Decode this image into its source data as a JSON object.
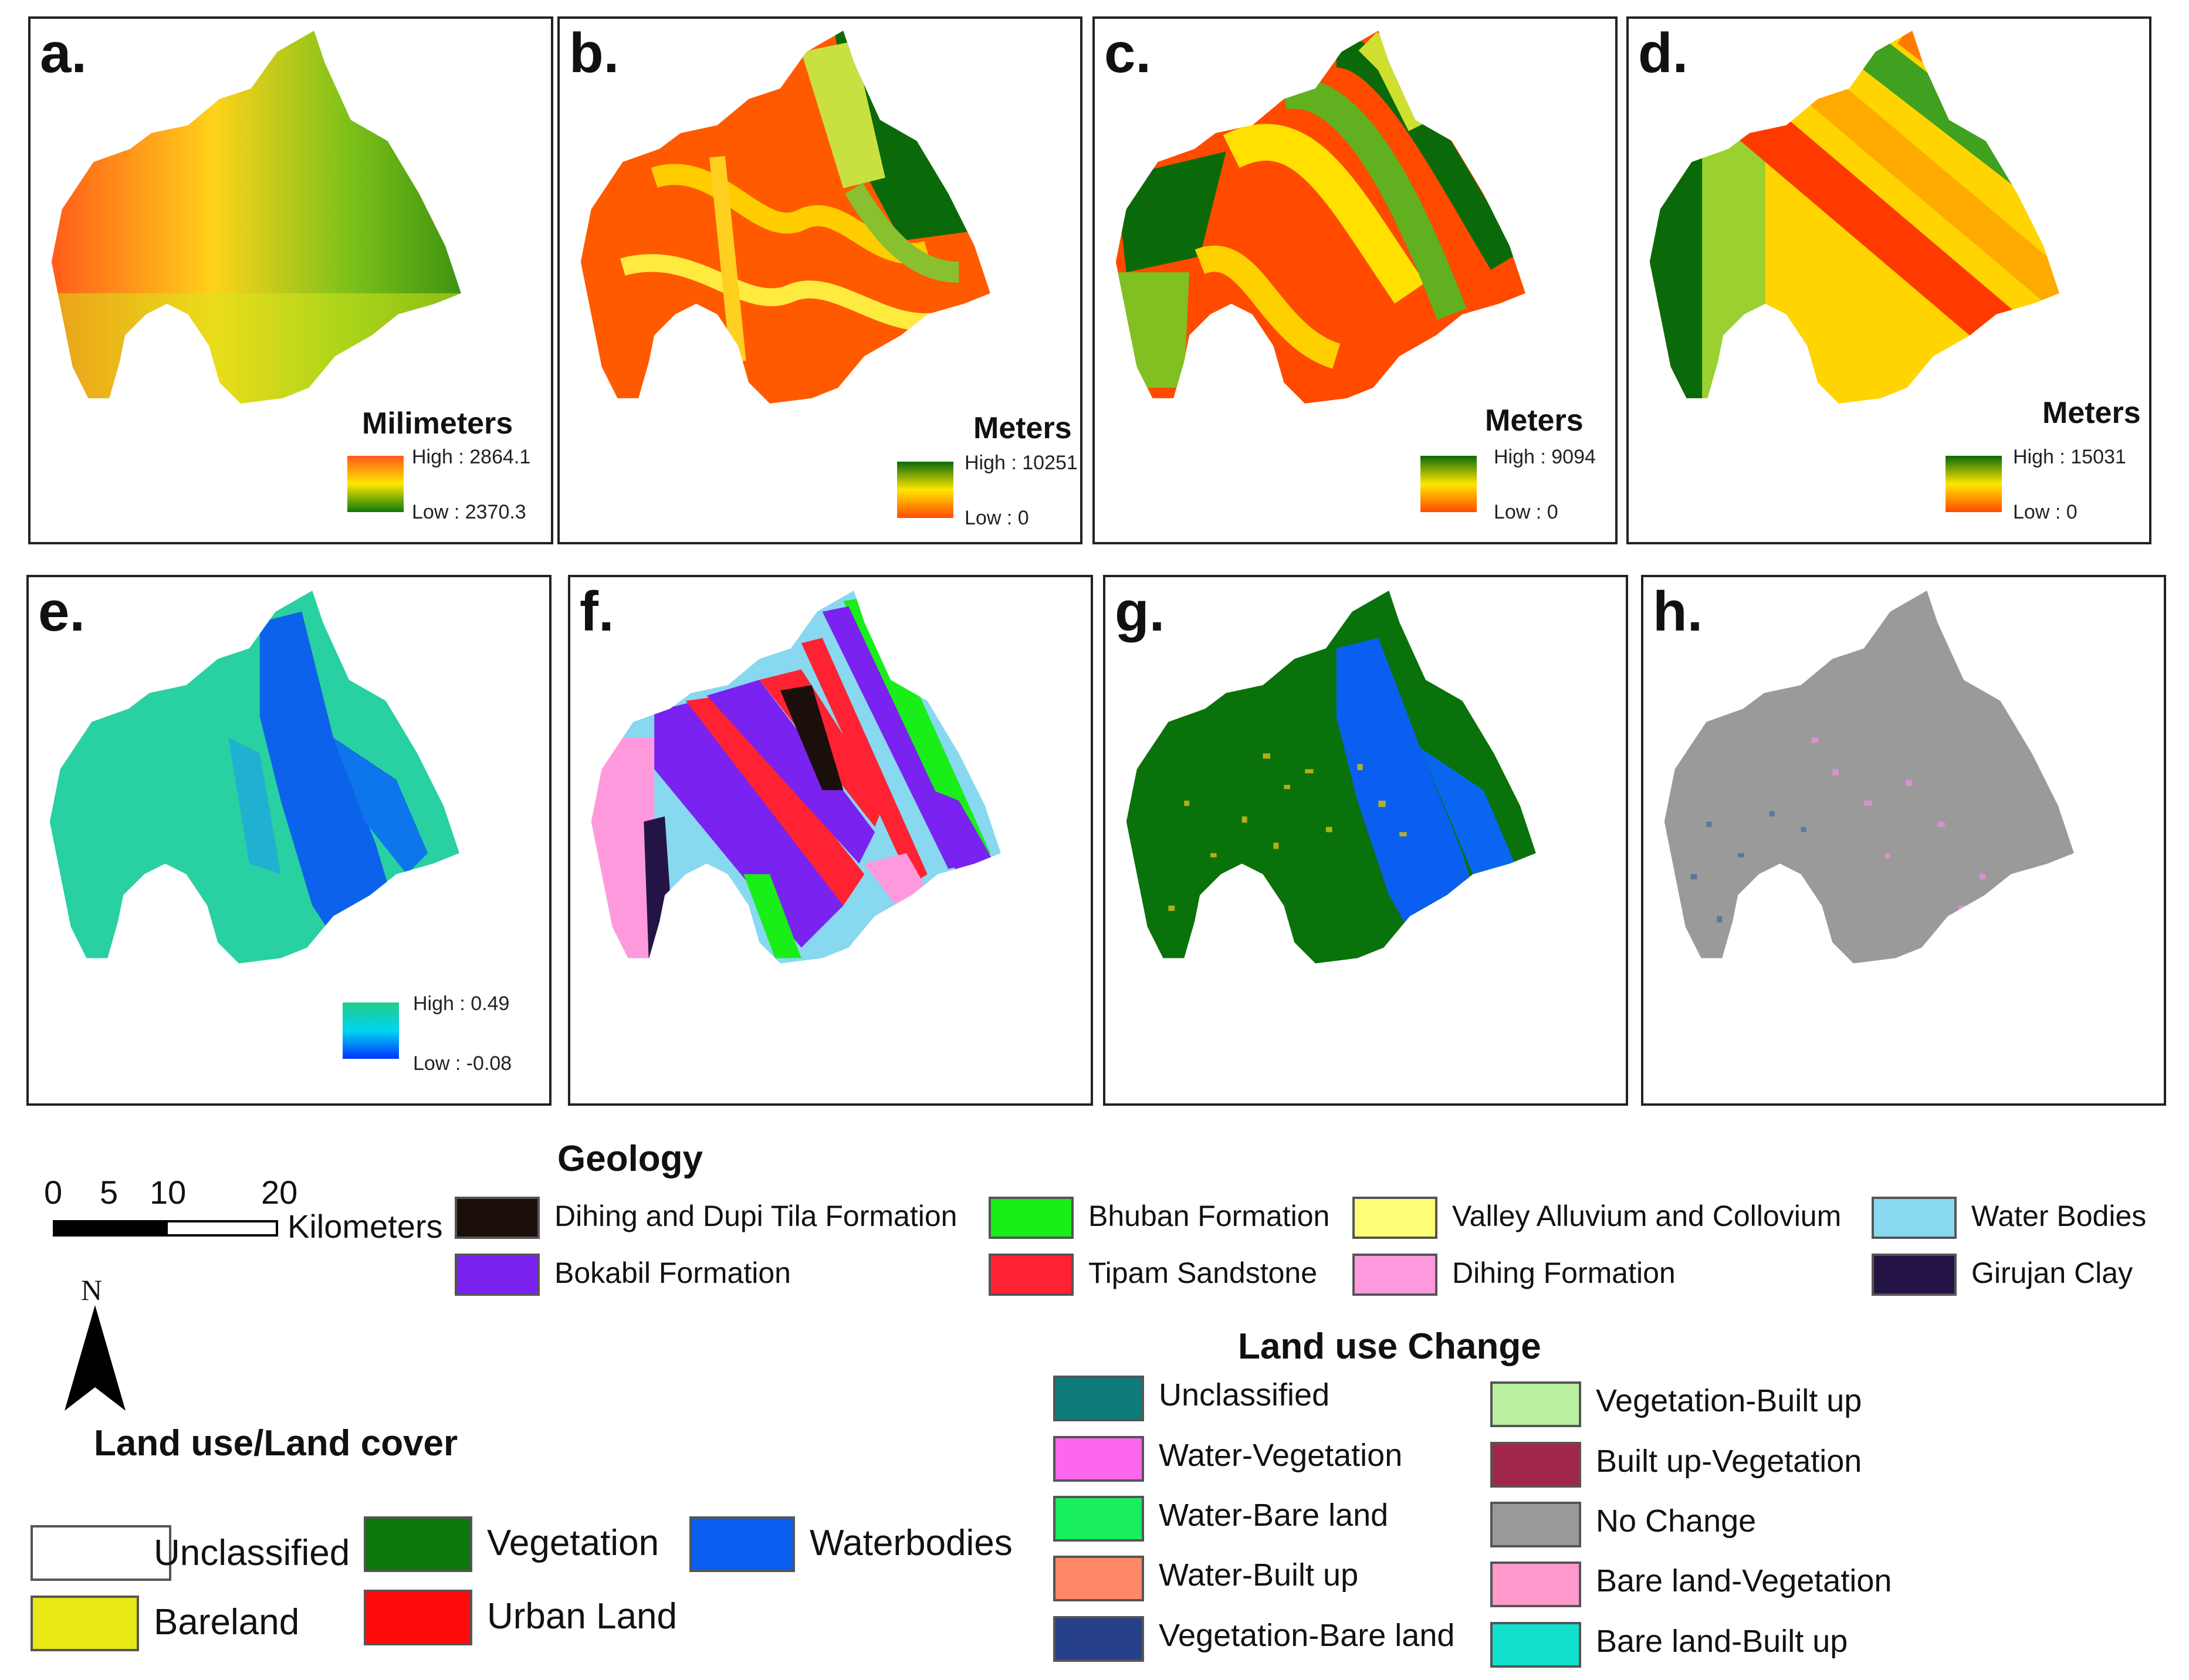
{
  "panels": [
    {
      "letter": "a.",
      "unit": "Milimeters",
      "high": "High : 2864.1",
      "low": "Low : 2370.3",
      "ramp_top": "#ff5a1a",
      "ramp_mid": "#ffe600",
      "ramp_bottom": "#0a7a0a"
    },
    {
      "letter": "b.",
      "unit": "Meters",
      "high": "High : 10251",
      "low": "Low : 0",
      "ramp_top": "#0a6a0a",
      "ramp_mid": "#ffe600",
      "ramp_bottom": "#ff4a00"
    },
    {
      "letter": "c.",
      "unit": "Meters",
      "high": "High : 9094",
      "low": "Low : 0",
      "ramp_top": "#0a6a0a",
      "ramp_mid": "#ffe600",
      "ramp_bottom": "#ff4a00"
    },
    {
      "letter": "d.",
      "unit": "Meters",
      "high": "High : 15031",
      "low": "Low : 0",
      "ramp_top": "#0a6a0a",
      "ramp_mid": "#ffe600",
      "ramp_bottom": "#ff4a00"
    },
    {
      "letter": "e.",
      "high": "High : 0.49",
      "low": "Low : -0.08",
      "ramp_top": "#22cc88",
      "ramp_mid": "#00d6f0",
      "ramp_bottom": "#0033ff"
    },
    {
      "letter": "f."
    },
    {
      "letter": "g."
    },
    {
      "letter": "h."
    }
  ],
  "scale_bar": {
    "ticks": [
      "0",
      "5",
      "10",
      "20"
    ],
    "unit": "Kilometers",
    "north": "N"
  },
  "geology": {
    "title": "Geology",
    "items": [
      {
        "label": "Dihing and Dupi Tila Formation",
        "color": "#1a0f0a"
      },
      {
        "label": "Bhuban Formation",
        "color": "#19ee19"
      },
      {
        "label": "Valley Alluvium and Collovium",
        "color": "#ffff77"
      },
      {
        "label": "Water Bodies",
        "color": "#88d8f0"
      },
      {
        "label": "Bokabil Formation",
        "color": "#7a22f0"
      },
      {
        "label": "Tipam Sandstone",
        "color": "#ff2233"
      },
      {
        "label": "Dihing Formation",
        "color": "#ff99dd"
      },
      {
        "label": "Girujan Clay",
        "color": "#241446"
      }
    ]
  },
  "landuse": {
    "title": "Land use/Land cover",
    "items": [
      {
        "label": "Unclassified",
        "color": "#ffffff"
      },
      {
        "label": "Vegetation",
        "color": "#0a780a"
      },
      {
        "label": "Waterbodies",
        "color": "#0a5ff0"
      },
      {
        "label": "Bareland",
        "color": "#e8e815"
      },
      {
        "label": "Urban Land",
        "color": "#ff0a0a"
      }
    ]
  },
  "change": {
    "title": "Land use Change",
    "items": [
      {
        "label": "Unclassified",
        "color": "#0f7a7a"
      },
      {
        "label": "Vegetation-Built up",
        "color": "#bbf0a0"
      },
      {
        "label": "Water-Vegetation",
        "color": "#ff66ee"
      },
      {
        "label": "Built up-Vegetation",
        "color": "#a0264a"
      },
      {
        "label": "Water-Bare land",
        "color": "#19ee60"
      },
      {
        "label": "No Change",
        "color": "#9a9a9a"
      },
      {
        "label": "Water-Built up",
        "color": "#ff8866"
      },
      {
        "label": "Bare land-Vegetation",
        "color": "#ff99cc"
      },
      {
        "label": "Vegetation-Bare land",
        "color": "#26408a"
      },
      {
        "label": "Bare land-Built up",
        "color": "#11e0cc"
      }
    ]
  }
}
